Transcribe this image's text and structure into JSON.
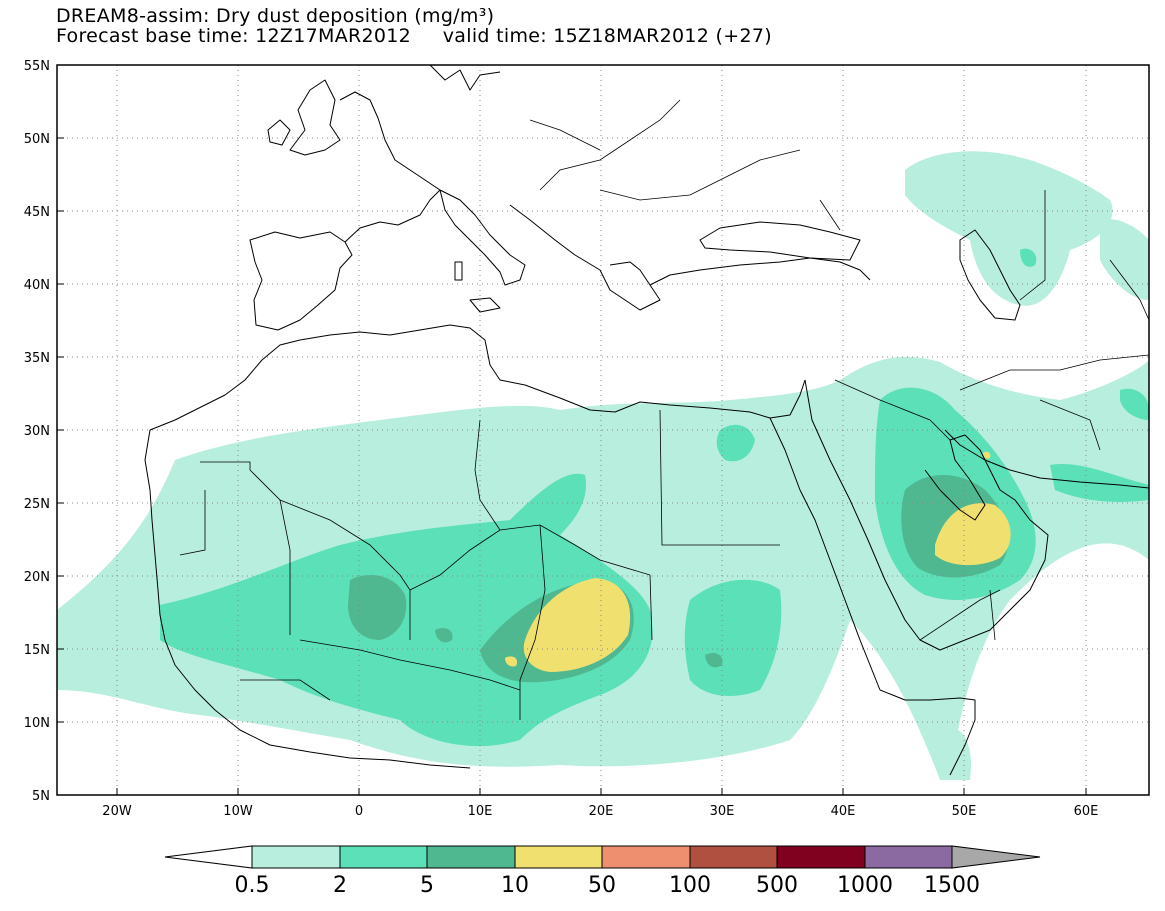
{
  "title": {
    "line1": "DREAM8-assim: Dry dust deposition (mg/m³)",
    "forecast_base": "Forecast base time: 12Z17MAR2012",
    "valid_time": "valid time: 15Z18MAR2012 (+27)"
  },
  "map": {
    "lon_range": [
      -25,
      65
    ],
    "lat_range": [
      5,
      55
    ],
    "lat_ticks": [
      "55N",
      "50N",
      "45N",
      "40N",
      "35N",
      "30N",
      "25N",
      "20N",
      "15N",
      "10N",
      "5N"
    ],
    "lon_ticks": [
      "20W",
      "10W",
      "0",
      "10E",
      "20E",
      "30E",
      "40E",
      "50E",
      "60E"
    ],
    "gridlines": "dotted"
  },
  "legend": {
    "labels": [
      "0.5",
      "2",
      "5",
      "10",
      "50",
      "100",
      "500",
      "1000",
      "1500"
    ],
    "colors": [
      "#ffffff",
      "#b8eedd",
      "#5ce0b8",
      "#50b890",
      "#f0e070",
      "#ee9070",
      "#b05040",
      "#800020",
      "#8a6aa0",
      "#a8a8a8"
    ]
  }
}
